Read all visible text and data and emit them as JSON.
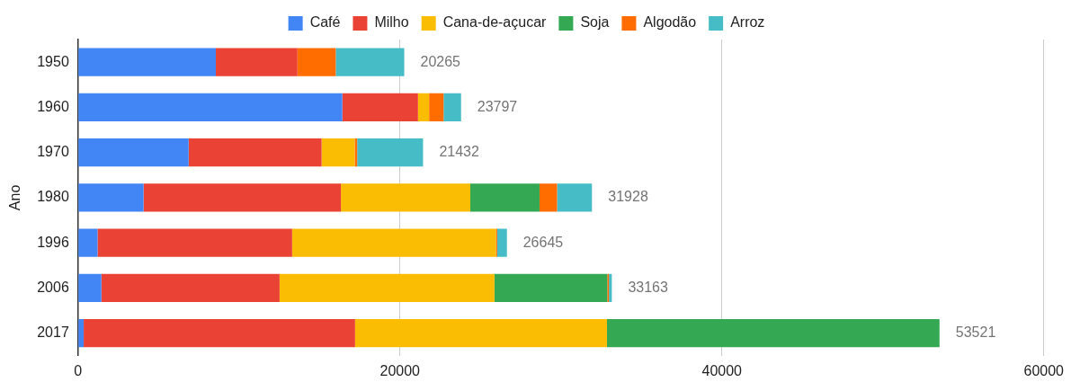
{
  "chart_data": {
    "type": "bar",
    "orientation": "horizontal",
    "stacked": true,
    "ylabel": "Ano",
    "categories": [
      "1950",
      "1960",
      "1970",
      "1980",
      "1996",
      "2006",
      "2017"
    ],
    "series": [
      {
        "name": "Café",
        "color": "#4285f4",
        "values": [
          8560,
          16420,
          6870,
          4070,
          1210,
          1450,
          350
        ]
      },
      {
        "name": "Milho",
        "color": "#ea4335",
        "values": [
          5070,
          4700,
          8260,
          12260,
          12090,
          11070,
          16860
        ]
      },
      {
        "name": "Cana-de-açucar",
        "color": "#fbbc04",
        "values": [
          0,
          690,
          2060,
          8040,
          12660,
          13350,
          15650
        ]
      },
      {
        "name": "Soja",
        "color": "#34a853",
        "values": [
          0,
          0,
          0,
          4300,
          0,
          7010,
          20661
        ]
      },
      {
        "name": "Algodão",
        "color": "#ff6d01",
        "values": [
          2380,
          900,
          150,
          1090,
          80,
          100,
          0
        ]
      },
      {
        "name": "Arroz",
        "color": "#46bdc6",
        "values": [
          4255,
          1087,
          4092,
          2168,
          605,
          183,
          0
        ]
      }
    ],
    "totals": [
      "20265",
      "23797",
      "21432",
      "31928",
      "26645",
      "33163",
      "53521"
    ],
    "xlim": [
      0,
      60000
    ],
    "xticks": [
      0,
      20000,
      40000,
      60000
    ],
    "grid": "x",
    "legend": "top"
  }
}
